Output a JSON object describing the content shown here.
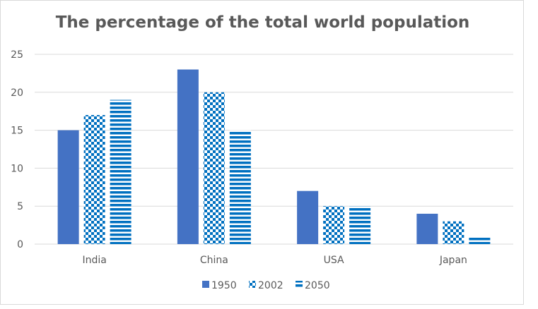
{
  "chart_data": {
    "type": "bar",
    "title": "The percentage of the total world population",
    "categories": [
      "India",
      "China",
      "USA",
      "Japan"
    ],
    "series": [
      {
        "name": "1950",
        "values": [
          15,
          23,
          7,
          4
        ],
        "pattern": "solid",
        "color": "#4472c4"
      },
      {
        "name": "2002",
        "values": [
          17,
          20,
          5,
          3
        ],
        "pattern": "checker",
        "color": "#0070c0"
      },
      {
        "name": "2050",
        "values": [
          19,
          15,
          5,
          1
        ],
        "pattern": "stripes",
        "color": "#0070c0"
      }
    ],
    "yticks": [
      "0",
      "5",
      "10",
      "15",
      "20",
      "25"
    ],
    "ylim": [
      0,
      25
    ],
    "xlabel": "",
    "ylabel": "",
    "grid": true,
    "legend_position": "bottom"
  }
}
